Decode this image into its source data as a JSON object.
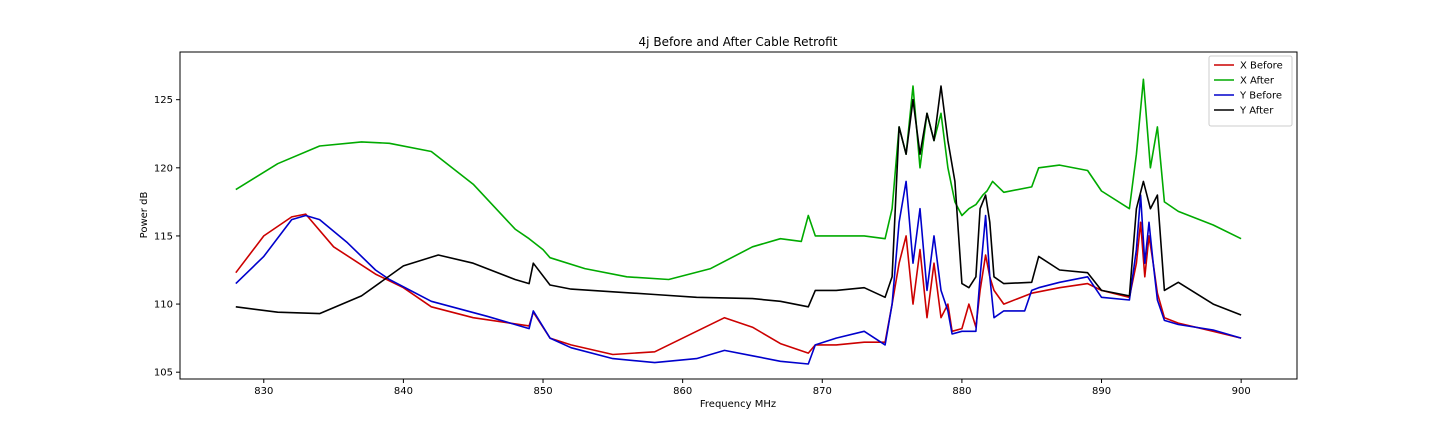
{
  "chart_data": {
    "type": "line",
    "title": "4j Before and After Cable Retrofit",
    "xlabel": "Frequency MHz",
    "ylabel": "Power dB",
    "xlim": [
      824,
      904
    ],
    "ylim": [
      104.5,
      128.5
    ],
    "xticks": [
      830,
      840,
      850,
      860,
      870,
      880,
      890,
      900
    ],
    "yticks": [
      105,
      110,
      115,
      120,
      125
    ],
    "grid": false,
    "legend_position": "top-right",
    "series": [
      {
        "name": "X Before",
        "color": "#cc0000",
        "x": [
          828,
          830,
          832,
          833,
          835,
          838,
          840,
          842,
          845,
          849,
          849.3,
          850.5,
          852,
          855,
          858,
          861,
          863,
          865,
          867,
          869,
          869.5,
          871,
          873,
          874.5,
          875,
          875.5,
          876,
          876.5,
          877,
          877.5,
          878,
          878.5,
          879,
          879.3,
          880,
          880.5,
          881,
          881.3,
          881.7,
          882,
          882.3,
          883,
          885,
          887,
          889,
          890,
          892,
          892.5,
          892.8,
          893.1,
          893.4,
          893.7,
          894,
          894.5,
          895.5,
          898,
          900
        ],
        "y": [
          112.3,
          115,
          116.4,
          116.6,
          114.2,
          112.2,
          111.2,
          109.8,
          109,
          108.4,
          109.4,
          107.5,
          107,
          106.3,
          106.5,
          108,
          109,
          108.3,
          107.1,
          106.4,
          107,
          107,
          107.2,
          107.2,
          110,
          113,
          115,
          110,
          114,
          109,
          113,
          109,
          110,
          108,
          108.2,
          110,
          108.3,
          111,
          113.6,
          112,
          111,
          110,
          110.8,
          111.2,
          111.5,
          111,
          110.5,
          113,
          116,
          112,
          115,
          113,
          110.8,
          109,
          108.6,
          108,
          107.5
        ]
      },
      {
        "name": "X After",
        "color": "#00aa00",
        "x": [
          828,
          831,
          834,
          837,
          839,
          842,
          845,
          848,
          849,
          850,
          850.5,
          853,
          856,
          859,
          862,
          865,
          867,
          868.5,
          869,
          869.5,
          871,
          873,
          874.5,
          875,
          875.5,
          876,
          876.5,
          877,
          877.5,
          878,
          878.5,
          879,
          879.5,
          880,
          880.5,
          881,
          881.5,
          881.8,
          882.2,
          883,
          885,
          885.5,
          887,
          889,
          890,
          892,
          892.5,
          893,
          893.5,
          894,
          894.5,
          895.5,
          898,
          900
        ],
        "y": [
          118.4,
          120.3,
          121.6,
          121.9,
          121.8,
          121.2,
          118.8,
          115.5,
          114.8,
          114,
          113.4,
          112.6,
          112,
          111.8,
          112.6,
          114.2,
          114.8,
          114.6,
          116.5,
          115,
          115,
          115,
          114.8,
          117,
          123,
          121,
          126,
          120,
          124,
          122,
          124,
          120,
          117.5,
          116.5,
          117,
          117.3,
          118,
          118.3,
          119,
          118.2,
          118.6,
          120,
          120.2,
          119.8,
          118.3,
          117,
          121,
          126.5,
          120,
          123,
          117.5,
          116.8,
          115.8,
          114.8
        ]
      },
      {
        "name": "Y Before",
        "color": "#0000cc",
        "x": [
          828,
          830,
          832,
          833,
          834,
          836,
          838,
          839,
          842,
          846,
          849,
          849.3,
          850.5,
          852,
          855,
          858,
          861,
          863,
          865,
          867,
          869,
          869.5,
          871,
          873,
          874.5,
          875,
          875.5,
          876,
          876.5,
          877,
          877.5,
          878,
          878.5,
          879,
          879.3,
          880,
          881,
          881.3,
          881.7,
          882,
          882.3,
          883,
          884.5,
          885,
          885.5,
          887,
          889,
          890,
          892,
          892.5,
          892.8,
          893.1,
          893.4,
          893.7,
          894,
          894.5,
          895.5,
          898,
          900
        ],
        "y": [
          111.5,
          113.5,
          116.2,
          116.5,
          116.2,
          114.5,
          112.5,
          111.8,
          110.2,
          109.1,
          108.2,
          109.5,
          107.5,
          106.8,
          106,
          105.7,
          106,
          106.6,
          106.2,
          105.8,
          105.6,
          107,
          107.5,
          108,
          107,
          110,
          116,
          119,
          113,
          117,
          111,
          115,
          111,
          109.5,
          107.8,
          108,
          108,
          112,
          116.5,
          112,
          109,
          109.5,
          109.5,
          111,
          111.2,
          111.6,
          112,
          110.5,
          110.3,
          114,
          118,
          113,
          116,
          113,
          110.3,
          108.8,
          108.5,
          108.1,
          107.5
        ]
      },
      {
        "name": "Y After",
        "color": "#000000",
        "x": [
          828,
          831,
          834,
          837,
          840,
          842.5,
          845,
          848,
          849,
          849.3,
          850.5,
          852,
          855,
          858,
          861,
          865,
          867,
          869,
          869.5,
          871,
          873,
          874.5,
          875,
          875.5,
          876,
          876.5,
          877,
          877.5,
          878,
          878.5,
          879,
          879.5,
          880,
          880.5,
          881,
          881.3,
          881.7,
          882,
          882.3,
          883,
          885,
          885.5,
          887,
          889,
          890,
          892,
          892.5,
          893,
          893.5,
          894,
          894.5,
          895.5,
          898,
          900
        ],
        "y": [
          109.8,
          109.4,
          109.3,
          110.6,
          112.8,
          113.6,
          113,
          111.8,
          111.5,
          113,
          111.4,
          111.1,
          110.9,
          110.7,
          110.5,
          110.4,
          110.2,
          109.8,
          111,
          111,
          111.2,
          110.5,
          112,
          123,
          121,
          125,
          121,
          124,
          122,
          126,
          122,
          119,
          111.5,
          111.2,
          112,
          117,
          118,
          116,
          112,
          111.5,
          111.6,
          113.5,
          112.5,
          112.3,
          111,
          110.6,
          117,
          119,
          117,
          118,
          111,
          111.6,
          110,
          109.2
        ]
      }
    ]
  }
}
